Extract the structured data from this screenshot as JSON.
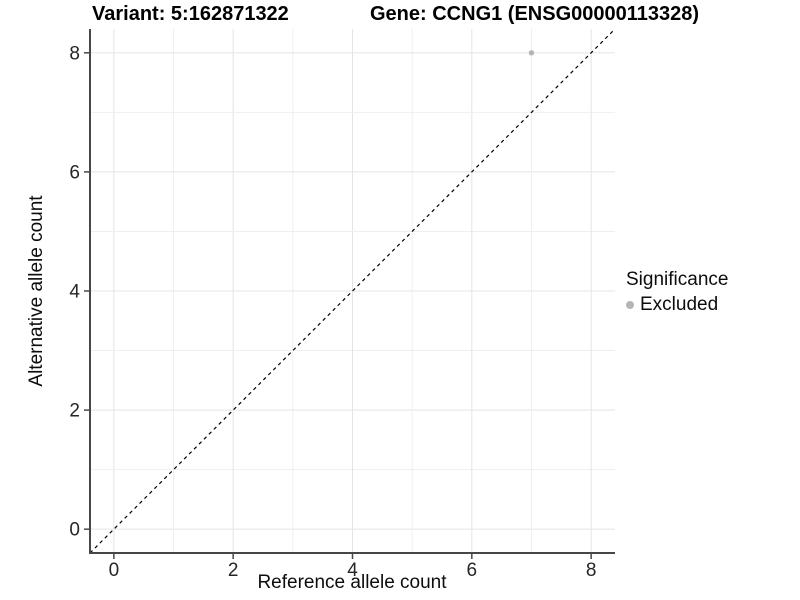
{
  "chart_data": {
    "type": "scatter",
    "title_left": "Variant: 5:162871322",
    "title_right": "Gene: CCNG1 (ENSG00000113328)",
    "xlabel": "Reference allele count",
    "ylabel": "Alternative allele count",
    "xlim": [
      -0.4,
      8.4
    ],
    "ylim": [
      -0.4,
      8.4
    ],
    "x_ticks": [
      0,
      2,
      4,
      6,
      8
    ],
    "y_ticks": [
      0,
      2,
      4,
      6,
      8
    ],
    "grid_positions": [
      0,
      1,
      2,
      3,
      4,
      5,
      6,
      7,
      8
    ],
    "points": [
      {
        "x": 7,
        "y": 8,
        "significance": "Excluded"
      }
    ],
    "identity_line": {
      "slope": 1,
      "intercept": 0,
      "style": "dashed",
      "color": "#000000"
    },
    "legend": {
      "title": "Significance",
      "items": [
        {
          "label": "Excluded",
          "color": "#b5b5b5"
        }
      ]
    },
    "colors": {
      "point": "#b5b5b5",
      "grid_major": "#e4e4e4",
      "grid_minor": "#efefef",
      "axis": "#474747",
      "tick_text": "#262626"
    },
    "grid": "on",
    "legend_position": "right"
  }
}
